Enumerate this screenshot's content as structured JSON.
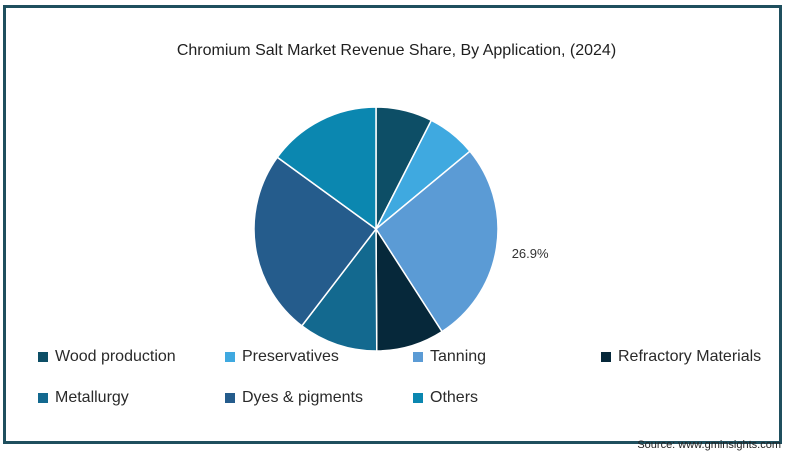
{
  "chart_data": {
    "type": "pie",
    "title": "Chromium Salt Market Revenue Share, By Application, (2024)",
    "slices": [
      {
        "name": "Wood production",
        "value": 7.5,
        "color": "#0d4e66"
      },
      {
        "name": "Preservatives",
        "value": 6.5,
        "color": "#3fa9e0"
      },
      {
        "name": "Tanning",
        "value": 26.9,
        "color": "#5b9bd5",
        "label": "26.9%"
      },
      {
        "name": "Refractory Materials",
        "value": 9.0,
        "color": "#06283a"
      },
      {
        "name": "Metallurgy",
        "value": 10.5,
        "color": "#13698f"
      },
      {
        "name": "Dyes & pigments",
        "value": 24.6,
        "color": "#255c8c"
      },
      {
        "name": "Others",
        "value": 15.0,
        "color": "#0b87b0"
      }
    ],
    "legend_position": "bottom"
  },
  "source": "Source: www.gminsights.com"
}
